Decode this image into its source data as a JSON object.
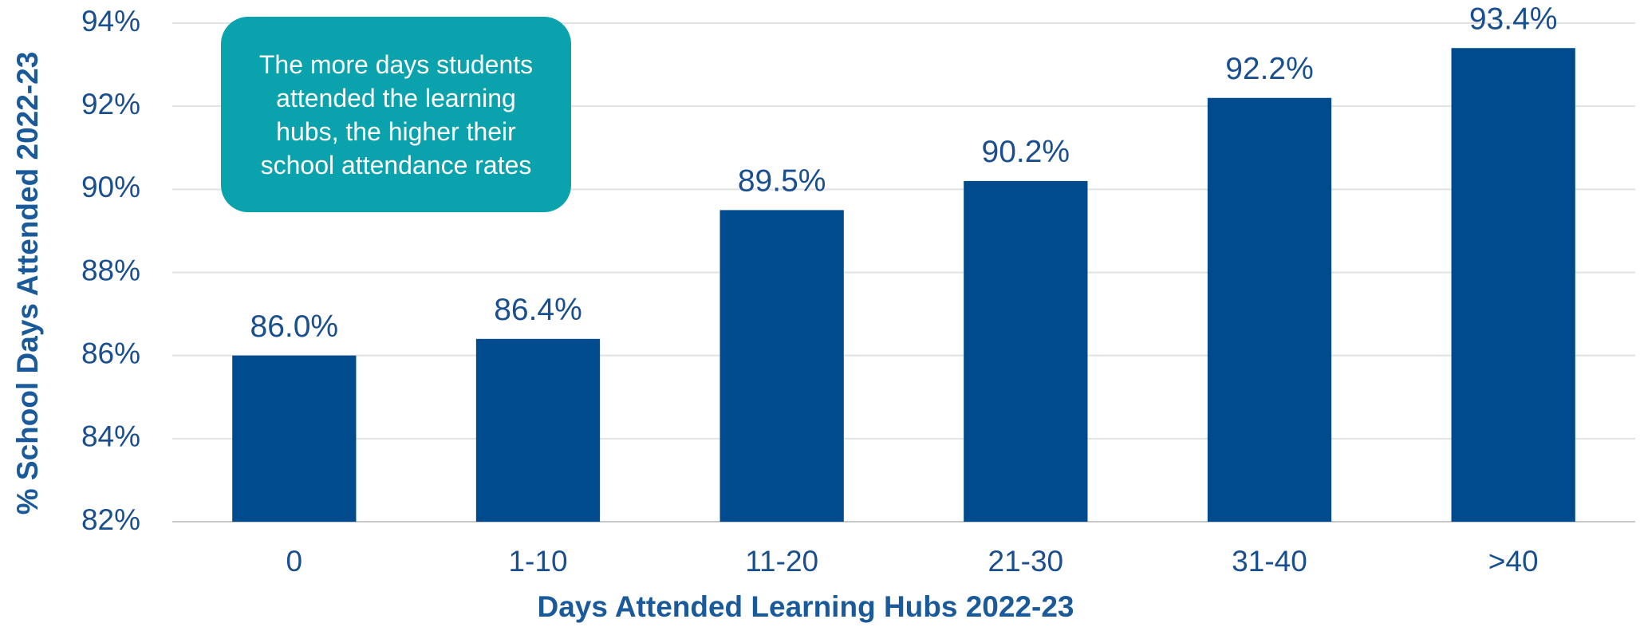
{
  "chart_data": {
    "type": "bar",
    "x_label": "Days Attended Learning Hubs 2022-23",
    "y_label": "% School Days Attended 2022-23",
    "annotation": "The more days students attended the learning hubs, the higher their school attendance rates",
    "categories": [
      "0",
      "1-10",
      "11-20",
      "21-30",
      "31-40",
      ">40"
    ],
    "values": [
      86.0,
      86.4,
      89.5,
      90.2,
      92.2,
      93.4
    ],
    "value_labels": [
      "86.0%",
      "86.4%",
      "89.5%",
      "90.2%",
      "92.2%",
      "93.4%"
    ],
    "color": "#004b8d",
    "ylim": [
      82,
      94
    ],
    "yticks": [
      {
        "value": 82,
        "label": "82%"
      },
      {
        "value": 84,
        "label": "84%"
      },
      {
        "value": 86,
        "label": "86%"
      },
      {
        "value": 88,
        "label": "88%"
      },
      {
        "value": 90,
        "label": "90%"
      },
      {
        "value": 92,
        "label": "92%"
      },
      {
        "value": 94,
        "label": "94%"
      }
    ],
    "grid": true
  }
}
